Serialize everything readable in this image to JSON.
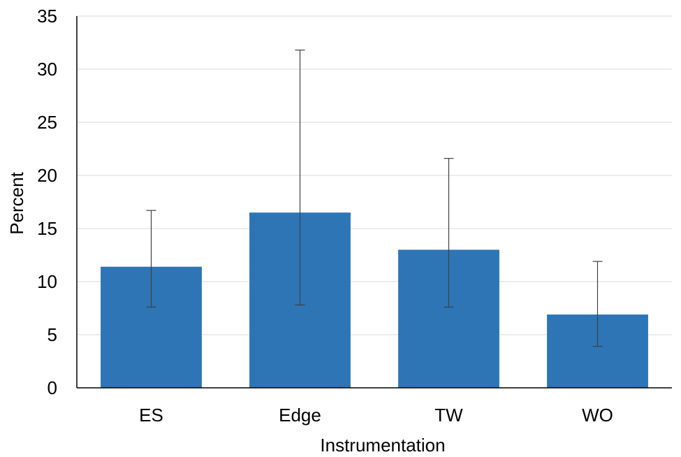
{
  "chart_data": {
    "type": "bar",
    "title": "",
    "xlabel": "Instrumentation",
    "ylabel": "Percent",
    "categories": [
      "ES",
      "Edge",
      "TW",
      "WO"
    ],
    "values": [
      11.4,
      16.5,
      13.0,
      6.9
    ],
    "error_low": [
      7.6,
      7.8,
      7.6,
      3.9
    ],
    "error_high": [
      16.7,
      31.8,
      21.6,
      11.9
    ],
    "ylim": [
      0,
      35
    ],
    "yticks": [
      0,
      5,
      10,
      15,
      20,
      25,
      30,
      35
    ],
    "grid": true,
    "legend": "none",
    "bar_color": "#2E75B6",
    "error_bar_color": "#404040",
    "grid_color": "#D9D9D9"
  }
}
